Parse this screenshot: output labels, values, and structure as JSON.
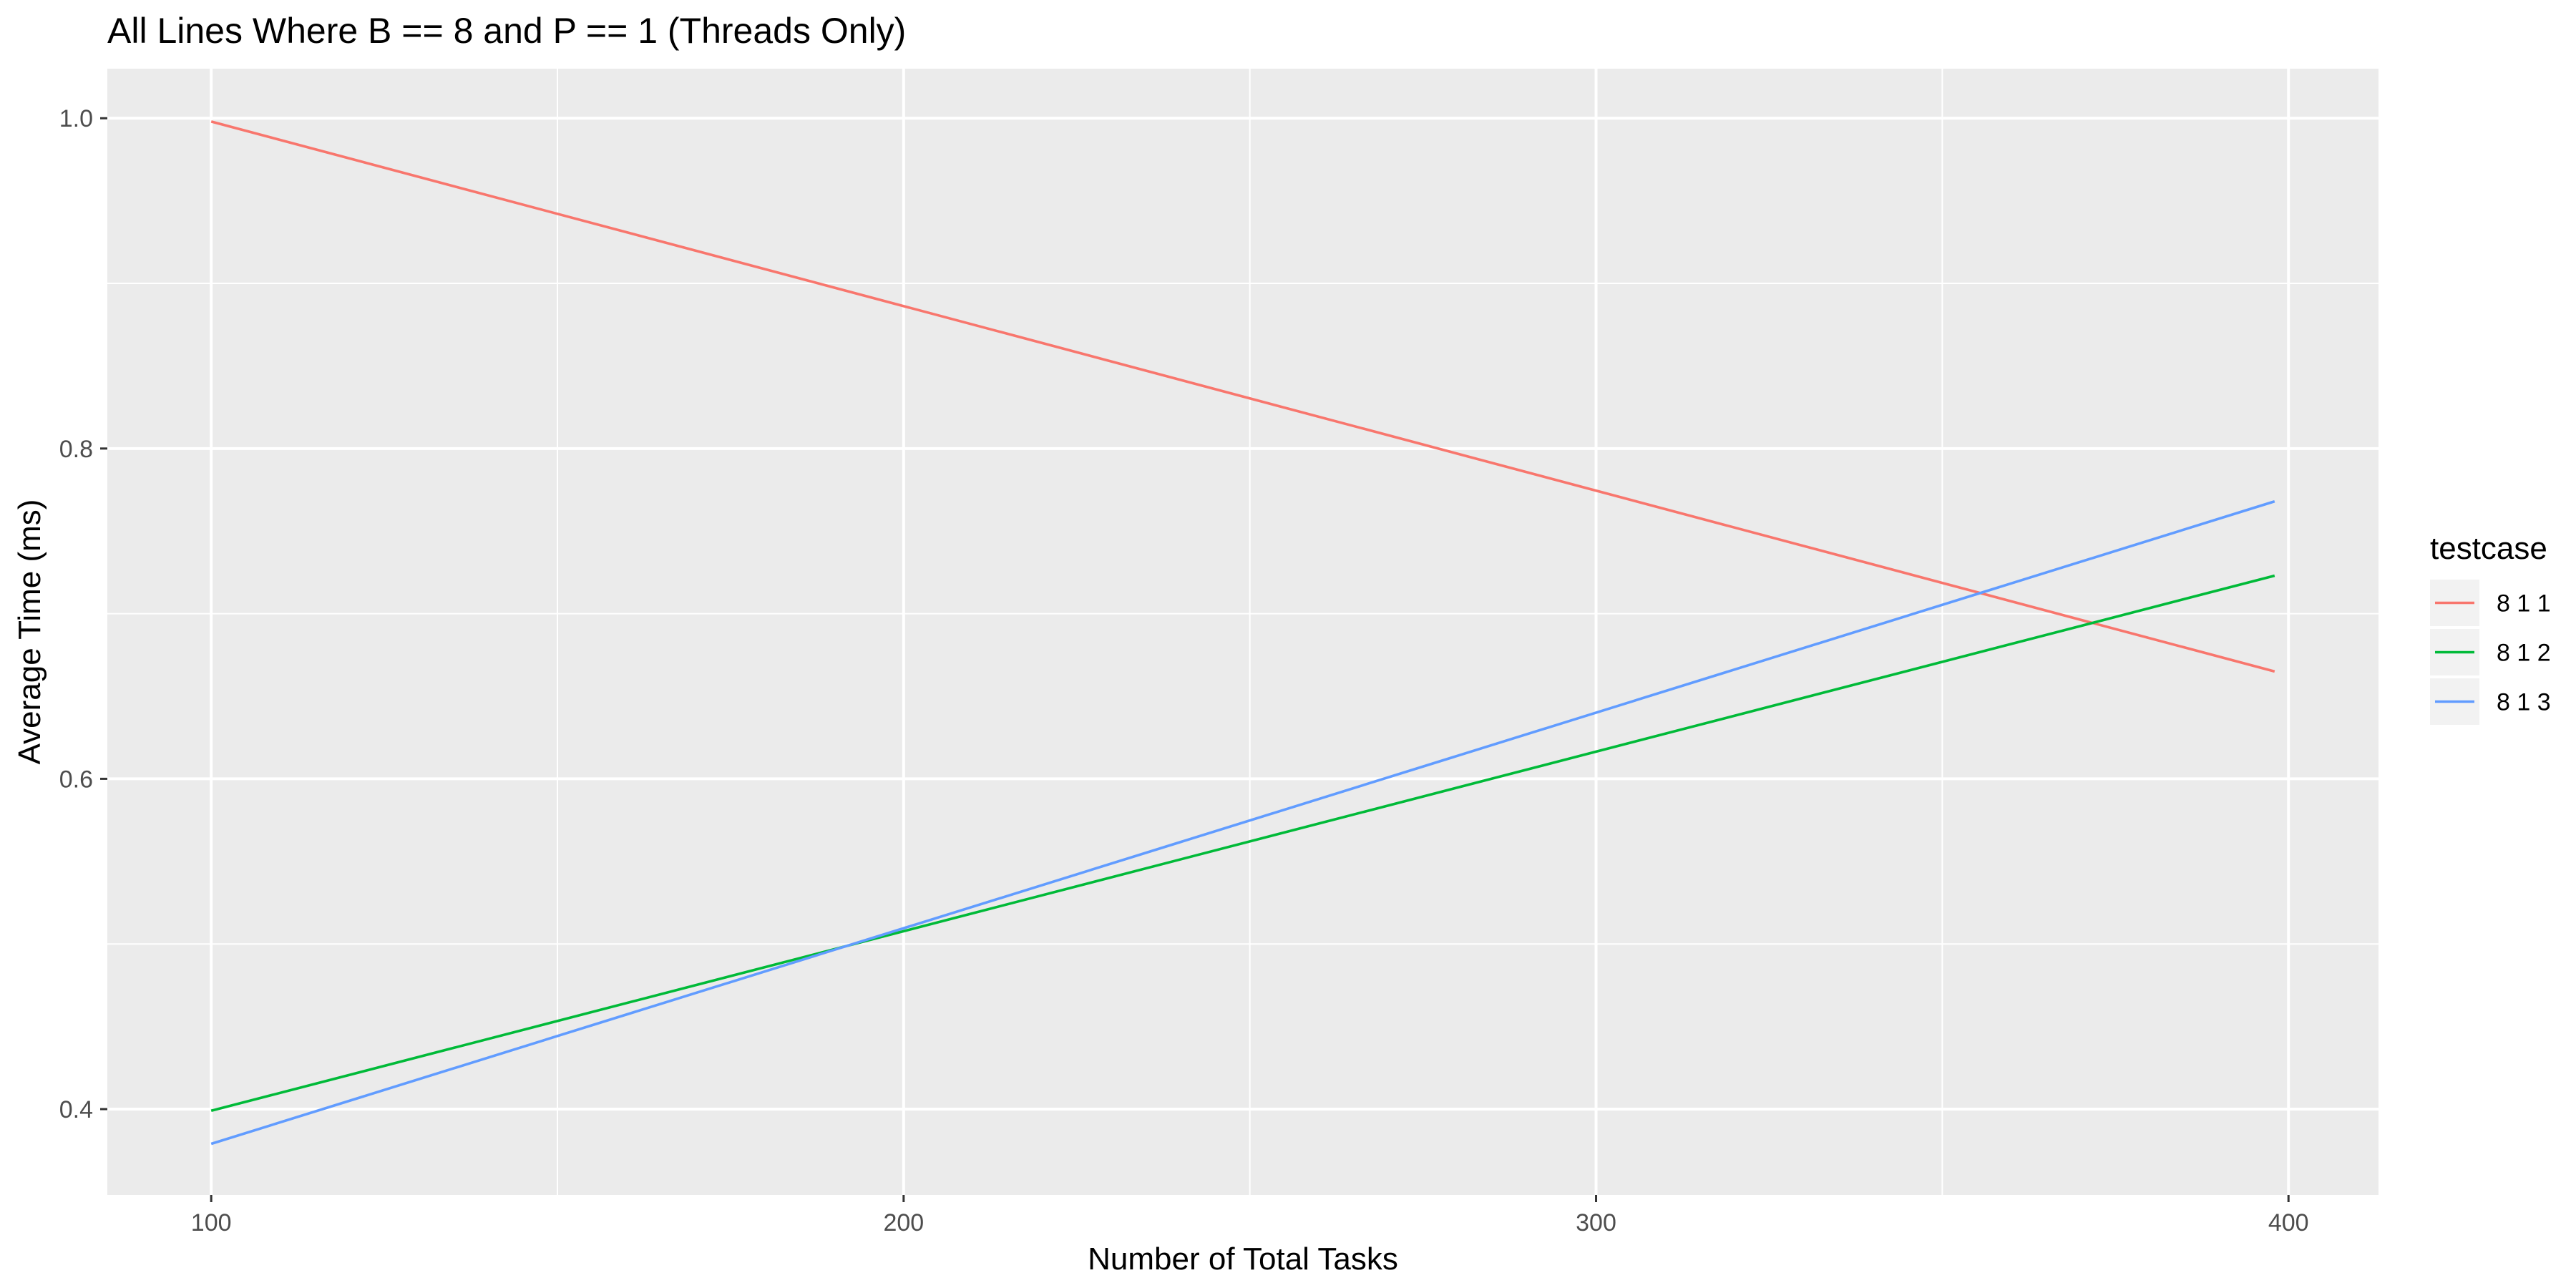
{
  "chart_data": {
    "type": "line",
    "title": "All Lines Where B == 8 and P == 1 (Threads Only)",
    "xlabel": "Number of Total Tasks",
    "ylabel": "Average Time (ms)",
    "xlim": [
      85,
      413
    ],
    "ylim": [
      0.348,
      1.03
    ],
    "x_ticks": [
      100,
      200,
      300,
      400
    ],
    "x_tick_labels": [
      "100",
      "200",
      "300",
      "400"
    ],
    "y_ticks": [
      0.4,
      0.6,
      0.8,
      1.0
    ],
    "y_tick_labels": [
      "0.4",
      "0.6",
      "0.8",
      "1.0"
    ],
    "grid": true,
    "legend_title": "testcase",
    "legend_position": "right",
    "series": [
      {
        "name": "8 1 1",
        "color": "#F8766D",
        "x": [
          100,
          398
        ],
        "y": [
          0.998,
          0.665
        ]
      },
      {
        "name": "8 1 2",
        "color": "#00BA38",
        "x": [
          100,
          398
        ],
        "y": [
          0.399,
          0.723
        ]
      },
      {
        "name": "8 1 3",
        "color": "#619CFF",
        "x": [
          100,
          398
        ],
        "y": [
          0.379,
          0.768
        ]
      }
    ]
  }
}
